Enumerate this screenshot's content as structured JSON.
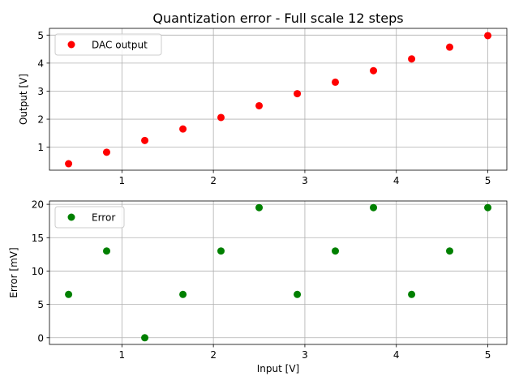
{
  "figure": {
    "title": "Quantization error - Full scale 12 steps"
  },
  "chart_data": [
    {
      "type": "scatter",
      "title": "Quantization error - Full scale 12 steps",
      "xlabel": "",
      "ylabel": "Output [V]",
      "xlim": [
        0.208,
        5.208
      ],
      "ylim": [
        0.18,
        5.24
      ],
      "xticks": [
        "1",
        "2",
        "3",
        "4",
        "5"
      ],
      "yticks": [
        "1",
        "2",
        "3",
        "4",
        "5"
      ],
      "grid": true,
      "legend_position": "upper-left",
      "series": [
        {
          "name": "DAC output",
          "color": "#ff0000",
          "marker": "circle",
          "x": [
            0.417,
            0.833,
            1.25,
            1.667,
            2.083,
            2.5,
            2.917,
            3.333,
            3.75,
            4.167,
            4.583,
            5.0
          ],
          "y": [
            0.41,
            0.82,
            1.24,
            1.65,
            2.06,
            2.48,
            2.91,
            3.32,
            3.73,
            4.15,
            4.57,
            4.98
          ]
        }
      ]
    },
    {
      "type": "scatter",
      "xlabel": "Input [V]",
      "ylabel": "Error [mV]",
      "xlim": [
        0.208,
        5.208
      ],
      "ylim": [
        -1.0,
        20.5
      ],
      "xticks": [
        "1",
        "2",
        "3",
        "4",
        "5"
      ],
      "yticks": [
        "0",
        "5",
        "10",
        "15",
        "20"
      ],
      "grid": true,
      "legend_position": "upper-left",
      "series": [
        {
          "name": "Error",
          "color": "#008000",
          "marker": "circle",
          "x": [
            0.417,
            0.833,
            1.25,
            1.667,
            2.083,
            2.5,
            2.917,
            3.333,
            3.75,
            4.167,
            4.583,
            5.0
          ],
          "y": [
            6.5,
            13.0,
            0.0,
            6.5,
            13.0,
            19.5,
            6.5,
            13.0,
            19.5,
            6.5,
            13.0,
            19.5
          ]
        }
      ]
    }
  ]
}
